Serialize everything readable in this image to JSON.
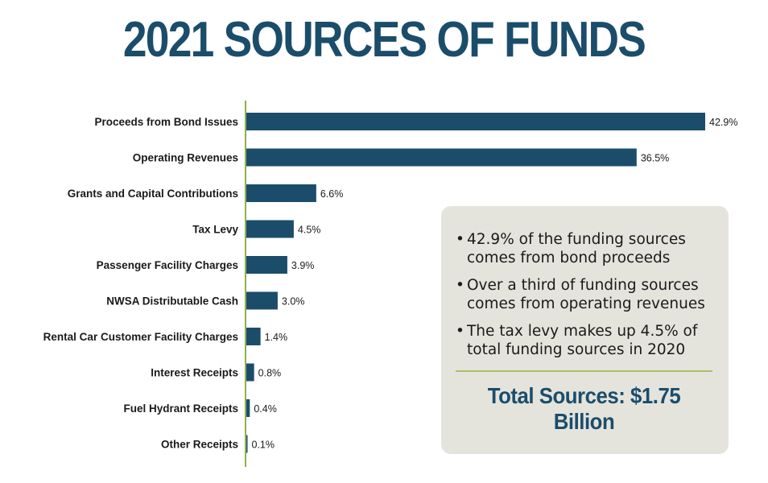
{
  "chart_data": {
    "type": "bar",
    "orientation": "horizontal",
    "title": "2021 SOURCES OF FUNDS",
    "categories": [
      "Proceeds from Bond Issues",
      "Operating Revenues",
      "Grants and Capital Contributions",
      "Tax Levy",
      "Passenger Facility Charges",
      "NWSA Distributable Cash",
      "Rental Car Customer Facility Charges",
      "Interest Receipts",
      "Fuel Hydrant Receipts",
      "Other Receipts"
    ],
    "values": [
      42.9,
      36.5,
      6.6,
      4.5,
      3.9,
      3.0,
      1.4,
      0.8,
      0.4,
      0.1
    ],
    "value_labels": [
      "42.9%",
      "36.5%",
      "6.6%",
      "4.5%",
      "3.9%",
      "3.0%",
      "1.4%",
      "0.8%",
      "0.4%",
      "0.1%"
    ],
    "unit": "%",
    "xlim": [
      0,
      42.9
    ],
    "grid": false,
    "legend": "none",
    "colors": {
      "bar": "#1b4d6b",
      "axis": "#8fb04a"
    }
  },
  "infobox": {
    "bullets": [
      "42.9% of the funding sources comes from bond proceeds",
      "Over a third of funding sources comes from operating revenues",
      "The tax levy makes up 4.5% of total funding sources in 2020"
    ],
    "total": "Total Sources: $1.75 Billion",
    "background": "#e4e4dd",
    "divider_color": "#a9bf6a"
  }
}
